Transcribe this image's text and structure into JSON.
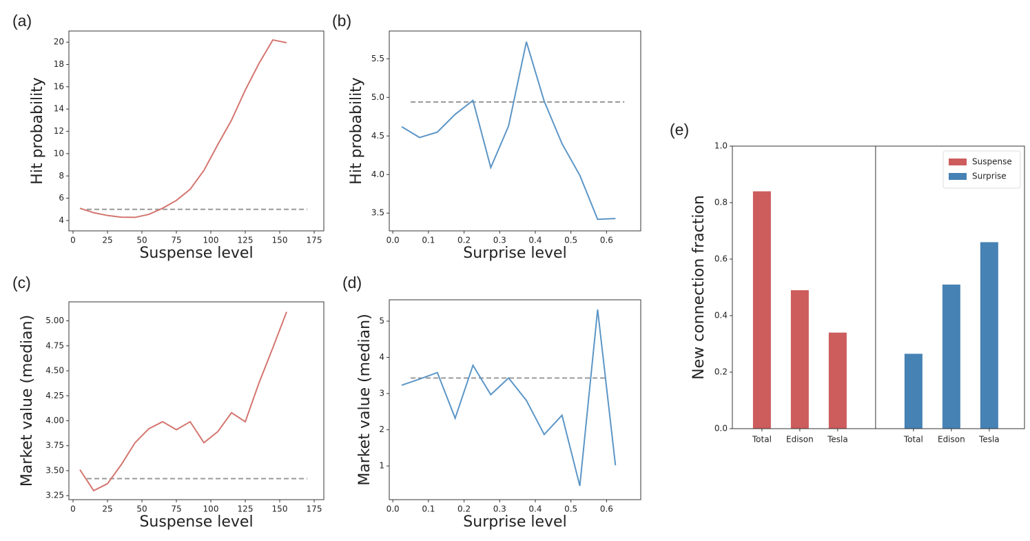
{
  "chart_data": [
    {
      "type": "line",
      "panel_label": "(a)",
      "x_label": "Suspense level",
      "y_label": "Hit probability",
      "x": [
        5,
        15,
        25,
        35,
        45,
        55,
        65,
        75,
        85,
        95,
        105,
        115,
        125,
        135,
        145,
        155
      ],
      "values": [
        5.1,
        4.7,
        4.45,
        4.3,
        4.28,
        4.55,
        5.1,
        5.8,
        6.8,
        8.5,
        10.8,
        13.0,
        15.7,
        18.1,
        20.2,
        19.95
      ],
      "color": "#d4756f",
      "baseline": {
        "y": 5.0,
        "x": [
          10,
          170
        ]
      },
      "xlim": [
        -3,
        182
      ],
      "xticks": [
        0,
        25,
        50,
        75,
        100,
        125,
        150,
        175
      ],
      "ylim": [
        3.07,
        21
      ],
      "yticks": [
        4,
        6,
        8,
        10,
        12,
        14,
        16,
        18,
        20
      ]
    },
    {
      "type": "line",
      "panel_label": "(b)",
      "x_label": "Surprise level",
      "y_label": "Hit probability",
      "x": [
        0.025,
        0.075,
        0.125,
        0.175,
        0.225,
        0.275,
        0.325,
        0.375,
        0.425,
        0.475,
        0.525,
        0.575,
        0.625
      ],
      "values": [
        4.62,
        4.48,
        4.55,
        4.78,
        4.96,
        4.09,
        4.63,
        5.72,
        4.95,
        4.4,
        3.99,
        3.42,
        3.43
      ],
      "color": "#5b95c6",
      "baseline": {
        "y": 4.94,
        "x": [
          0.05,
          0.65
        ]
      },
      "xlim": [
        -0.01,
        0.696
      ],
      "xticks": [
        {
          "value": 0,
          "label": "0.0"
        },
        0.1,
        0.2,
        0.3,
        0.4,
        0.5,
        0.6
      ],
      "ylim": [
        3.27,
        5.86
      ],
      "yticks": [
        3.5,
        {
          "value": 4,
          "label": "4.0"
        },
        4.5,
        {
          "value": 5,
          "label": "5.0"
        },
        5.5
      ]
    },
    {
      "type": "line",
      "panel_label": "(c)",
      "x_label": "Suspense level",
      "y_label": "Market value (median)",
      "x": [
        5,
        15,
        25,
        35,
        45,
        55,
        65,
        75,
        85,
        95,
        105,
        115,
        125,
        135,
        145,
        155
      ],
      "values": [
        3.51,
        3.3,
        3.37,
        3.56,
        3.78,
        3.92,
        3.99,
        3.91,
        3.99,
        3.78,
        3.89,
        4.08,
        3.99,
        4.38,
        4.73,
        5.09
      ],
      "color": "#d4756f",
      "baseline": {
        "y": 3.42,
        "x": [
          10,
          170
        ]
      },
      "xlim": [
        -3,
        182
      ],
      "xticks": [
        0,
        25,
        50,
        75,
        100,
        125,
        150,
        175
      ],
      "ylim": [
        3.21,
        5.19
      ],
      "yticks": [
        3.25,
        {
          "value": 3.5,
          "label": "3.50"
        },
        3.75,
        {
          "value": 4,
          "label": "4.00"
        },
        4.25,
        {
          "value": 4.5,
          "label": "4.50"
        },
        4.75,
        {
          "value": 5,
          "label": "5.00"
        }
      ]
    },
    {
      "type": "line",
      "panel_label": "(d)",
      "x_label": "Surprise level",
      "y_label": "Market value (median)",
      "x": [
        0.025,
        0.075,
        0.125,
        0.175,
        0.225,
        0.275,
        0.325,
        0.375,
        0.425,
        0.475,
        0.525,
        0.575,
        0.625
      ],
      "values": [
        3.23,
        3.4,
        3.58,
        2.32,
        3.78,
        2.97,
        3.43,
        2.81,
        1.87,
        2.4,
        0.45,
        5.32,
        1.02
      ],
      "color": "#5b95c6",
      "baseline": {
        "y": 3.43,
        "x": [
          0.05,
          0.6
        ]
      },
      "xlim": [
        -0.01,
        0.696
      ],
      "xticks": [
        {
          "value": 0,
          "label": "0.0"
        },
        0.1,
        0.2,
        0.3,
        0.4,
        0.5,
        0.6
      ],
      "ylim": [
        0.07,
        5.59
      ],
      "yticks": [
        1,
        2,
        3,
        4,
        5
      ]
    },
    {
      "type": "bar",
      "panel_label": "(e)",
      "y_label": "New connection fraction",
      "categories": [
        "Total",
        "Edison",
        "Tesla",
        null,
        "Total",
        "Edison",
        "Tesla"
      ],
      "series": [
        {
          "name": "Suspense",
          "color": "#cd5c5c",
          "values": [
            0.84,
            0.49,
            0.34,
            null,
            null,
            null,
            null
          ]
        },
        {
          "name": "Surprise",
          "color": "#4682b4",
          "values": [
            null,
            null,
            null,
            null,
            0.265,
            0.51,
            0.66
          ]
        }
      ],
      "legend": "upper right",
      "ylim": [
        0,
        1
      ],
      "yticks": [
        {
          "value": 0,
          "label": "0.0"
        },
        0.2,
        0.4,
        0.6,
        0.8,
        {
          "value": 1,
          "label": "1.0"
        }
      ]
    }
  ]
}
